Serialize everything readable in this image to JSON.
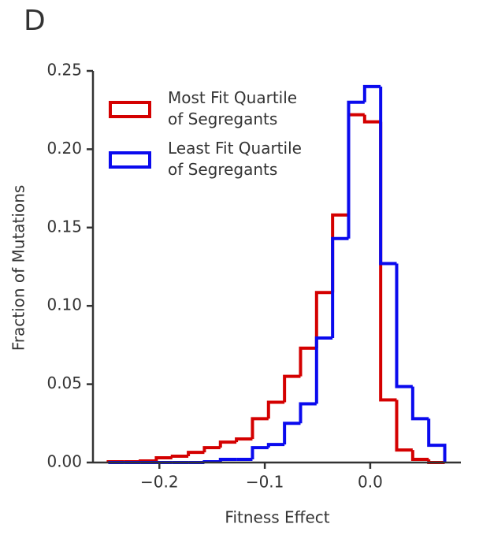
{
  "chart_data": {
    "type": "histogram",
    "panel_label": "D",
    "xlabel": "Fitness Effect",
    "ylabel": "Fraction of Mutations",
    "bins": [
      -0.2485,
      -0.2333,
      -0.2181,
      -0.2029,
      -0.1877,
      -0.1725,
      -0.1573,
      -0.1421,
      -0.1269,
      -0.1117,
      -0.0965,
      -0.0813,
      -0.0661,
      -0.0509,
      -0.0357,
      -0.0205,
      -0.0053,
      0.0099,
      0.0251,
      0.0403,
      0.0555,
      0.0707
    ],
    "series": [
      {
        "name": "Most Fit Quartile\nof Segregants",
        "color": "#d40000",
        "values": [
          0.0005,
          0.0005,
          0.001,
          0.003,
          0.004,
          0.0065,
          0.0095,
          0.013,
          0.015,
          0.028,
          0.0385,
          0.055,
          0.073,
          0.1085,
          0.158,
          0.222,
          0.2175,
          0.04,
          0.008,
          0.002,
          0
        ]
      },
      {
        "name": "Least Fit Quartile\nof Segregants",
        "color": "#0a0aee",
        "values": [
          0,
          0,
          0,
          0,
          0,
          0,
          0.0005,
          0.002,
          0.002,
          0.0095,
          0.0115,
          0.025,
          0.0375,
          0.0795,
          0.143,
          0.23,
          0.24,
          0.127,
          0.0485,
          0.028,
          0.011
        ]
      }
    ],
    "xlim": [
      -0.263,
      0.086
    ],
    "ylim": [
      0,
      0.25
    ],
    "xticks": [
      {
        "value": -0.2,
        "label": "−0.2"
      },
      {
        "value": -0.1,
        "label": "−0.1"
      },
      {
        "value": 0,
        "label": "0.0"
      }
    ],
    "yticks": [
      {
        "value": 0,
        "label": "0.00"
      },
      {
        "value": 0.05,
        "label": "0.05"
      },
      {
        "value": 0.1,
        "label": "0.10"
      },
      {
        "value": 0.15,
        "label": "0.15"
      },
      {
        "value": 0.2,
        "label": "0.20"
      },
      {
        "value": 0.25,
        "label": "0.25"
      }
    ],
    "legend": "upper left"
  }
}
